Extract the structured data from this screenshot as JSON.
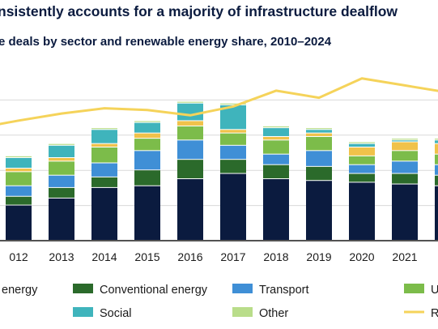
{
  "title": "nsistently accounts for a majority of infrastructure dealflow",
  "subtitle": "e deals by sector and renewable energy share, 2010–2024",
  "colors": {
    "renewable": "#0b1b3f",
    "conventional": "#2b6a2b",
    "transport": "#3f8fd6",
    "utilities": "#7cbc4a",
    "digital": "#f0c24a",
    "social": "#3fb4bc",
    "other": "#b9dd8a",
    "line": "#f5d35a",
    "grid": "#d9d9d9",
    "axis": "#1a1a1a"
  },
  "chart_data": {
    "type": "bar",
    "stacked": true,
    "categories": [
      "012",
      "2013",
      "2014",
      "2015",
      "2016",
      "2017",
      "2018",
      "2019",
      "2020",
      "2021",
      "2"
    ],
    "ylim": [
      0,
      100
    ],
    "series": [
      {
        "name": " energy",
        "key": "renewable",
        "values": [
          20,
          24,
          30,
          31,
          35,
          38,
          35,
          34,
          33,
          32,
          31
        ]
      },
      {
        "name": "Conventional energy",
        "key": "conventional",
        "values": [
          5,
          6,
          6,
          9,
          11,
          8,
          8,
          8,
          5,
          6,
          6
        ]
      },
      {
        "name": "Transport",
        "key": "transport",
        "values": [
          6,
          7,
          8,
          11,
          11,
          8,
          6,
          9,
          5,
          7,
          6
        ]
      },
      {
        "name": "Uti",
        "key": "utilities",
        "values": [
          8,
          8,
          9,
          7,
          8,
          7,
          8,
          8,
          5,
          6,
          6
        ]
      },
      {
        "name": "",
        "key": "digital",
        "values": [
          2,
          2,
          2,
          3,
          3,
          2,
          2,
          2,
          5,
          5,
          6
        ]
      },
      {
        "name": "Social",
        "key": "social",
        "values": [
          6,
          7,
          8,
          6,
          10,
          14,
          5,
          2,
          2,
          1,
          2
        ]
      },
      {
        "name": "Other",
        "key": "other",
        "values": [
          1,
          1,
          1,
          1,
          1,
          1,
          1,
          1,
          1,
          1,
          1
        ]
      }
    ],
    "line": {
      "name": "Re",
      "values": [
        60,
        64,
        67,
        66,
        63,
        68,
        77,
        73,
        84,
        80,
        76
      ]
    }
  },
  "legend": [
    {
      "label": " energy",
      "key": "renewable",
      "kind": "box"
    },
    {
      "label": "Conventional energy",
      "key": "conventional",
      "kind": "box"
    },
    {
      "label": "Transport",
      "key": "transport",
      "kind": "box"
    },
    {
      "label": "Uti",
      "key": "utilities",
      "kind": "box"
    },
    {
      "label": "Social",
      "key": "social",
      "kind": "box"
    },
    {
      "label": "Other",
      "key": "other",
      "kind": "box"
    },
    {
      "label": "Re",
      "key": "line",
      "kind": "line"
    }
  ]
}
